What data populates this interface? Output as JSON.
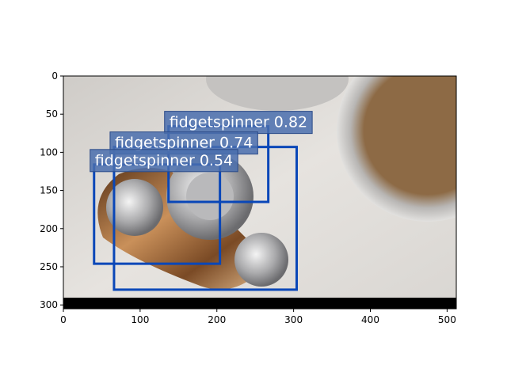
{
  "chart_data": {
    "type": "detection",
    "xlim": [
      0,
      512
    ],
    "ylim": [
      305,
      0
    ],
    "xticks": [
      0,
      100,
      200,
      300,
      400,
      500
    ],
    "yticks": [
      0,
      50,
      100,
      150,
      200,
      250,
      300
    ],
    "box_color": "#0a47b8",
    "label_color": "#4a6eae",
    "boxes": [
      {
        "label": "fidgetspinner 0.82",
        "x0": 137,
        "y0": 66,
        "x1": 267,
        "y1": 165
      },
      {
        "label": "fidgetspinner 0.74",
        "x0": 66,
        "y0": 93,
        "x1": 304,
        "y1": 280
      },
      {
        "label": "fidgetspinner 0.54",
        "x0": 40,
        "y0": 116,
        "x1": 204,
        "y1": 246
      }
    ]
  }
}
